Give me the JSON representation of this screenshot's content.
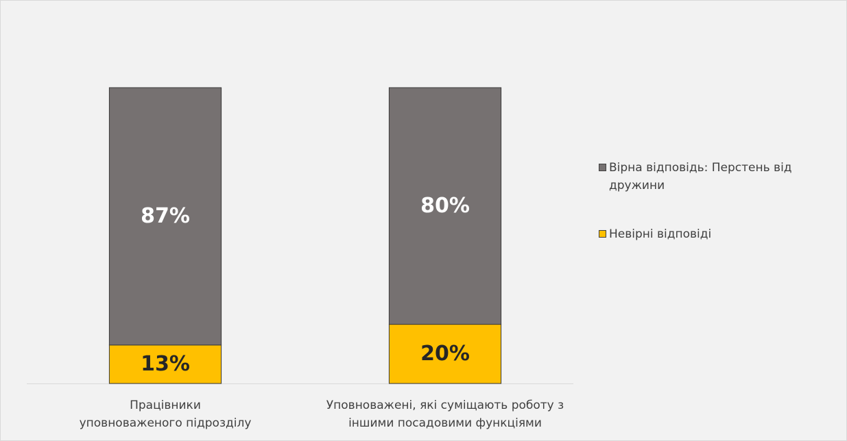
{
  "chart_data": {
    "type": "stacked_bar",
    "categories": [
      "Працівники\nуповноваженого підрозділу",
      "Уповноважені, які суміщають роботу з\nіншими посадовими функціями"
    ],
    "series": [
      {
        "name": "Невірні відповіді",
        "color": "#FFC000",
        "values": [
          13,
          20
        ],
        "value_labels": [
          "13%",
          "20%"
        ],
        "label_color": "#262626"
      },
      {
        "name": "Вірна відповідь: Перстень від дружини",
        "color": "#767171",
        "values": [
          87,
          80
        ],
        "value_labels": [
          "87%",
          "80%"
        ],
        "label_color": "#ffffff"
      }
    ],
    "legend": "right"
  }
}
